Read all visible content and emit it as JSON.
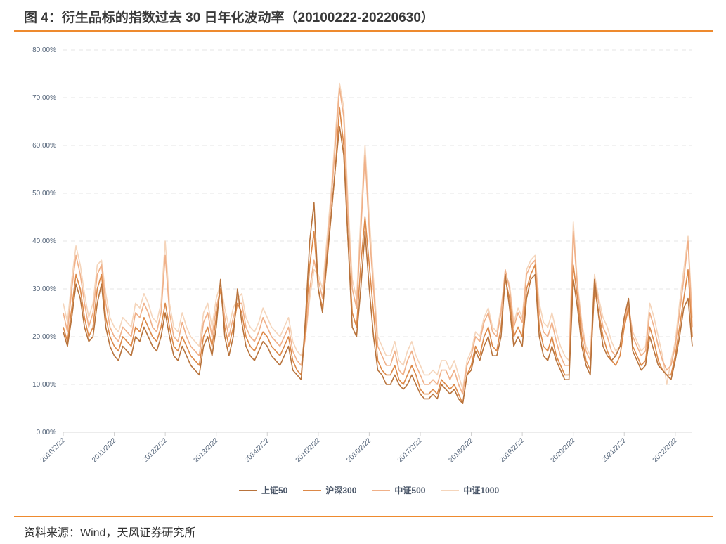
{
  "title": "图 4：衍生品标的指数过去 30 日年化波动率（20100222-20220630）",
  "source": "资料来源：Wind，天风证券研究所",
  "colors": {
    "accent": "#ee8a2e"
  },
  "chart_data": {
    "type": "line",
    "title": "",
    "xlabel": "",
    "ylabel": "",
    "x_start": "2010-02",
    "x_end": "2022-06",
    "x_frequency": "monthly",
    "ylim": [
      0,
      80
    ],
    "y_ticks": [
      0,
      10,
      20,
      30,
      40,
      50,
      60,
      70,
      80
    ],
    "y_tick_labels": [
      "0.00%",
      "10.00%",
      "20.00%",
      "30.00%",
      "40.00%",
      "50.00%",
      "60.00%",
      "70.00%",
      "80.00%"
    ],
    "x_tick_labels": [
      "2010/2/22",
      "2011/2/22",
      "2012/2/22",
      "2013/2/22",
      "2014/2/22",
      "2015/2/22",
      "2016/2/22",
      "2017/2/22",
      "2018/2/22",
      "2019/2/22",
      "2020/2/22",
      "2021/2/22",
      "2022/2/22"
    ],
    "grid": "horizontal dashed",
    "legend_position": "bottom",
    "series": [
      {
        "name": "上证50",
        "color": "#b8733c",
        "values": [
          21,
          18,
          24,
          31,
          28,
          22,
          19,
          20,
          27,
          31,
          22,
          18,
          16,
          15,
          18,
          17,
          16,
          20,
          19,
          22,
          20,
          18,
          17,
          20,
          25,
          20,
          16,
          15,
          18,
          16,
          14,
          13,
          12,
          18,
          20,
          16,
          22,
          32,
          20,
          16,
          20,
          30,
          23,
          18,
          16,
          15,
          17,
          19,
          18,
          16,
          15,
          14,
          16,
          18,
          13,
          12,
          11,
          24,
          40,
          48,
          30,
          25,
          36,
          45,
          55,
          64,
          58,
          40,
          22,
          20,
          30,
          42,
          30,
          20,
          13,
          12,
          10,
          10,
          12,
          10,
          9,
          10,
          12,
          10,
          8,
          7,
          7,
          8,
          7,
          10,
          9,
          8,
          9,
          7,
          6,
          12,
          13,
          17,
          15,
          18,
          20,
          16,
          16,
          20,
          33,
          26,
          18,
          20,
          18,
          28,
          32,
          33,
          20,
          16,
          15,
          18,
          15,
          13,
          11,
          11,
          32,
          26,
          18,
          14,
          12,
          32,
          24,
          18,
          16,
          15,
          16,
          18,
          24,
          28,
          17,
          15,
          13,
          14,
          20,
          17,
          14,
          13,
          12,
          11,
          15,
          20,
          26,
          28,
          18
        ]
      },
      {
        "name": "沪深300",
        "color": "#dc8848",
        "values": [
          22,
          19,
          26,
          33,
          30,
          24,
          20,
          22,
          30,
          33,
          24,
          20,
          18,
          17,
          20,
          19,
          18,
          22,
          21,
          24,
          22,
          20,
          19,
          22,
          27,
          22,
          18,
          17,
          20,
          18,
          16,
          15,
          14,
          20,
          22,
          18,
          24,
          30,
          22,
          18,
          22,
          27,
          25,
          20,
          18,
          17,
          19,
          21,
          20,
          18,
          17,
          16,
          18,
          20,
          15,
          13,
          12,
          22,
          35,
          42,
          30,
          26,
          35,
          45,
          55,
          68,
          60,
          40,
          25,
          22,
          35,
          45,
          35,
          25,
          15,
          13,
          12,
          12,
          14,
          11,
          10,
          12,
          14,
          12,
          9,
          8,
          8,
          9,
          8,
          11,
          10,
          9,
          10,
          8,
          6,
          12,
          14,
          18,
          16,
          20,
          22,
          18,
          17,
          22,
          32,
          28,
          20,
          22,
          20,
          30,
          33,
          35,
          22,
          18,
          17,
          20,
          16,
          14,
          12,
          12,
          35,
          28,
          20,
          15,
          13,
          30,
          25,
          20,
          17,
          15,
          14,
          16,
          22,
          26,
          18,
          16,
          14,
          15,
          22,
          19,
          15,
          13,
          12,
          12,
          16,
          22,
          28,
          34,
          20
        ]
      },
      {
        "name": "中证500",
        "color": "#f0b088",
        "values": [
          25,
          21,
          30,
          37,
          33,
          27,
          22,
          25,
          33,
          35,
          27,
          22,
          20,
          19,
          22,
          21,
          20,
          25,
          24,
          27,
          25,
          22,
          21,
          25,
          37,
          25,
          20,
          19,
          23,
          20,
          18,
          17,
          16,
          23,
          25,
          20,
          26,
          30,
          24,
          20,
          24,
          27,
          27,
          22,
          20,
          19,
          21,
          24,
          22,
          20,
          19,
          18,
          20,
          22,
          17,
          15,
          14,
          20,
          30,
          36,
          32,
          28,
          38,
          48,
          60,
          72,
          66,
          45,
          30,
          26,
          42,
          58,
          42,
          30,
          18,
          16,
          14,
          14,
          17,
          13,
          12,
          15,
          17,
          14,
          12,
          10,
          10,
          11,
          10,
          13,
          13,
          11,
          13,
          10,
          8,
          14,
          16,
          20,
          19,
          23,
          25,
          21,
          20,
          25,
          34,
          30,
          22,
          25,
          23,
          33,
          35,
          36,
          25,
          21,
          20,
          23,
          19,
          16,
          14,
          14,
          42,
          30,
          22,
          17,
          15,
          32,
          27,
          22,
          20,
          17,
          16,
          18,
          23,
          27,
          20,
          18,
          16,
          17,
          25,
          22,
          18,
          15,
          13,
          14,
          18,
          25,
          32,
          40,
          22
        ]
      },
      {
        "name": "中证1000",
        "color": "#f5d5bb",
        "values": [
          27,
          23,
          32,
          39,
          35,
          29,
          24,
          27,
          35,
          36,
          29,
          24,
          22,
          21,
          24,
          23,
          22,
          27,
          26,
          29,
          27,
          24,
          23,
          27,
          40,
          27,
          22,
          21,
          25,
          22,
          20,
          19,
          18,
          25,
          27,
          22,
          28,
          31,
          26,
          22,
          26,
          28,
          29,
          24,
          22,
          21,
          23,
          26,
          24,
          22,
          21,
          20,
          22,
          24,
          19,
          17,
          16,
          20,
          28,
          34,
          33,
          30,
          40,
          50,
          62,
          73,
          68,
          48,
          32,
          28,
          45,
          60,
          45,
          32,
          20,
          18,
          16,
          16,
          19,
          15,
          14,
          17,
          19,
          16,
          14,
          12,
          12,
          13,
          12,
          15,
          15,
          13,
          15,
          12,
          9,
          15,
          17,
          21,
          20,
          24,
          26,
          22,
          21,
          26,
          33,
          31,
          23,
          26,
          24,
          34,
          36,
          37,
          27,
          23,
          22,
          25,
          21,
          18,
          16,
          15,
          44,
          31,
          23,
          18,
          16,
          33,
          28,
          24,
          22,
          19,
          17,
          18,
          22,
          26,
          21,
          19,
          17,
          18,
          27,
          24,
          20,
          16,
          10,
          15,
          19,
          27,
          34,
          41,
          24
        ]
      }
    ]
  }
}
